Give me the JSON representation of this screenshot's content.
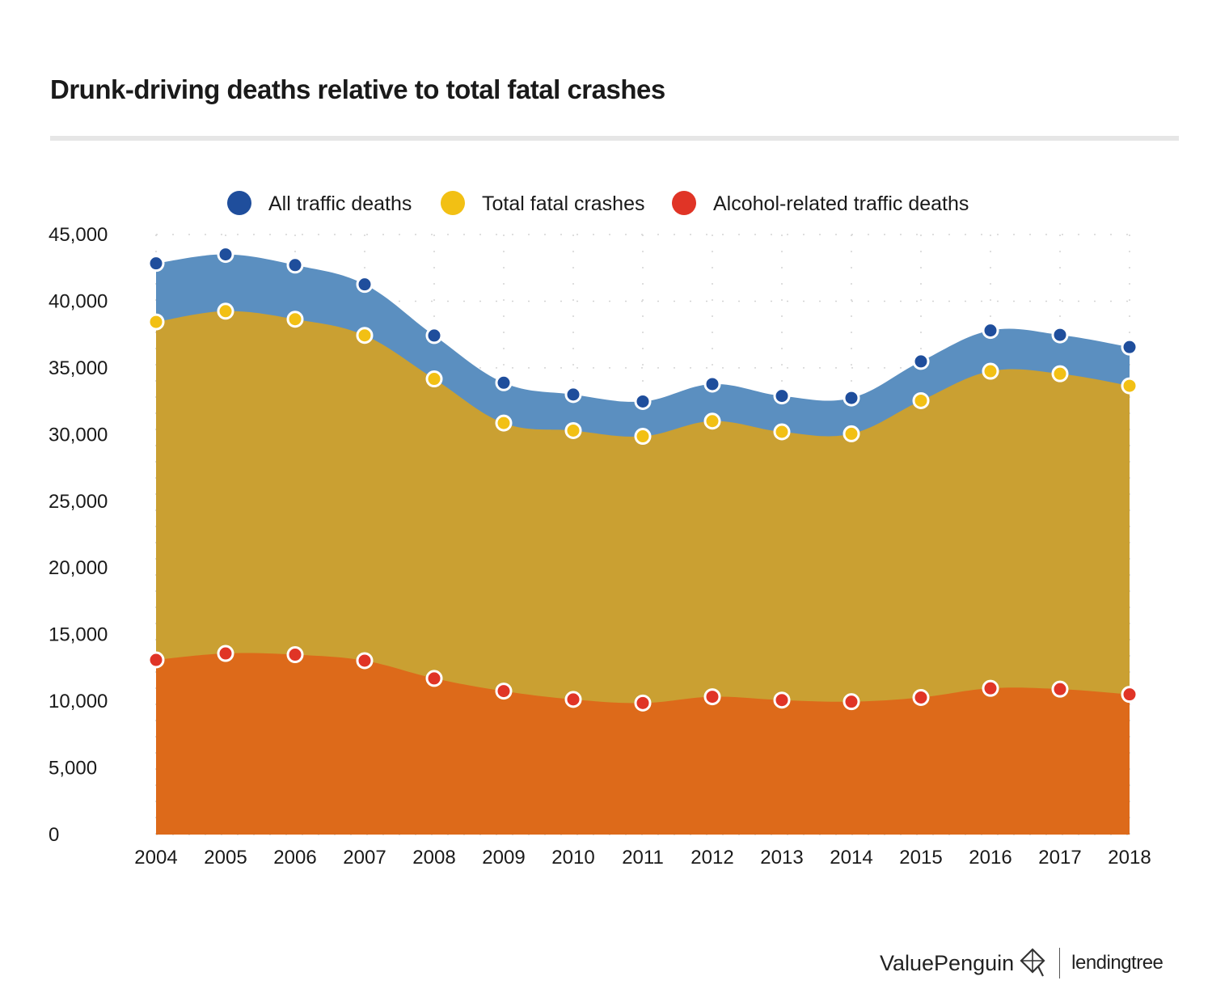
{
  "title": "Drunk-driving deaths relative to total fatal crashes",
  "footer": {
    "brand": "ValuePenguin",
    "partner": "lendingtree"
  },
  "chart_data": {
    "type": "area",
    "title": "Drunk-driving deaths relative to total fatal crashes",
    "xlabel": "",
    "ylabel": "",
    "ylim": [
      0,
      45000
    ],
    "yticks": [
      0,
      5000,
      10000,
      15000,
      20000,
      25000,
      30000,
      35000,
      40000,
      45000
    ],
    "ytick_labels": [
      "0",
      "5,000",
      "10,000",
      "15,000",
      "20,000",
      "25,000",
      "30,000",
      "35,000",
      "40,000",
      "45,000"
    ],
    "grid": true,
    "legend_position": "top-center",
    "categories": [
      "2004",
      "2005",
      "2006",
      "2007",
      "2008",
      "2009",
      "2010",
      "2011",
      "2012",
      "2013",
      "2014",
      "2015",
      "2016",
      "2017",
      "2018"
    ],
    "series": [
      {
        "name": "All traffic deaths",
        "color": "#5b8fc0",
        "marker_color": "#1f4e9c",
        "values": [
          42836,
          43510,
          42708,
          41259,
          37423,
          33883,
          32999,
          32479,
          33782,
          32893,
          32744,
          35484,
          37806,
          37473,
          36560
        ]
      },
      {
        "name": "Total fatal crashes",
        "color": "#caa032",
        "marker_color": "#f2c014",
        "values": [
          38444,
          39252,
          38648,
          37435,
          34172,
          30862,
          30296,
          29867,
          31006,
          30202,
          30056,
          32539,
          34748,
          34560,
          33654
        ]
      },
      {
        "name": "Alcohol-related traffic deaths",
        "color": "#dd6a1a",
        "marker_color": "#e03426",
        "values": [
          13099,
          13582,
          13491,
          13041,
          11711,
          10759,
          10136,
          9865,
          10336,
          10084,
          9967,
          10280,
          10967,
          10908,
          10511
        ]
      }
    ]
  }
}
